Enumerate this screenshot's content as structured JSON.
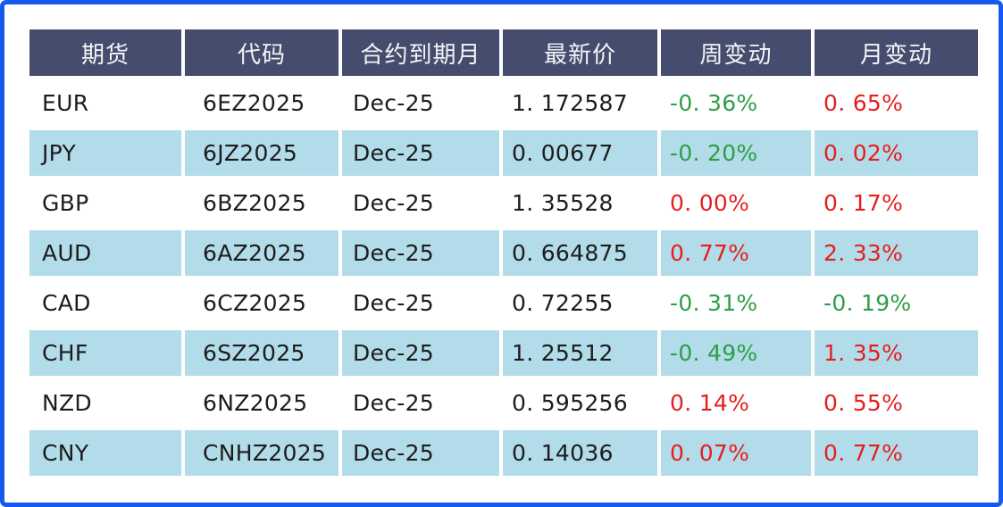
{
  "colors": {
    "frame_border": "#145af0",
    "header_bg": "#454c6e",
    "header_text": "#f4f5f7",
    "row_alt_bg": "#b2dce9",
    "body_text": "#1c1c1c",
    "negative_green": "#2d9e46",
    "positive_red": "#e61e1e"
  },
  "table": {
    "columns": [
      {
        "key": "future",
        "label": "期货"
      },
      {
        "key": "code",
        "label": "代码"
      },
      {
        "key": "expiry",
        "label": "合约到期月"
      },
      {
        "key": "last",
        "label": "最新价"
      },
      {
        "key": "week",
        "label": "周变动"
      },
      {
        "key": "month",
        "label": "月变动"
      }
    ],
    "rows": [
      {
        "future": "EUR",
        "code": "6EZ2025",
        "expiry": "Dec-25",
        "last": "1. 172587",
        "week": {
          "text": "-0. 36%",
          "color": "green"
        },
        "month": {
          "text": "0. 65%",
          "color": "red"
        }
      },
      {
        "future": "JPY",
        "code": "6JZ2025",
        "expiry": "Dec-25",
        "last": "0. 00677",
        "week": {
          "text": "-0. 20%",
          "color": "green"
        },
        "month": {
          "text": "0. 02%",
          "color": "red"
        }
      },
      {
        "future": "GBP",
        "code": "6BZ2025",
        "expiry": "Dec-25",
        "last": "1. 35528",
        "week": {
          "text": "0. 00%",
          "color": "red"
        },
        "month": {
          "text": "0. 17%",
          "color": "red"
        }
      },
      {
        "future": "AUD",
        "code": "6AZ2025",
        "expiry": "Dec-25",
        "last": "0. 664875",
        "week": {
          "text": "0. 77%",
          "color": "red"
        },
        "month": {
          "text": "2. 33%",
          "color": "red"
        }
      },
      {
        "future": "CAD",
        "code": "6CZ2025",
        "expiry": "Dec-25",
        "last": "0. 72255",
        "week": {
          "text": "-0. 31%",
          "color": "green"
        },
        "month": {
          "text": "-0. 19%",
          "color": "green"
        }
      },
      {
        "future": "CHF",
        "code": "6SZ2025",
        "expiry": "Dec-25",
        "last": "1. 25512",
        "week": {
          "text": "-0. 49%",
          "color": "green"
        },
        "month": {
          "text": "1. 35%",
          "color": "red"
        }
      },
      {
        "future": "NZD",
        "code": "6NZ2025",
        "expiry": "Dec-25",
        "last": "0. 595256",
        "week": {
          "text": "0. 14%",
          "color": "red"
        },
        "month": {
          "text": "0. 55%",
          "color": "red"
        }
      },
      {
        "future": "CNY",
        "code": "CNHZ2025",
        "expiry": "Dec-25",
        "last": "0. 14036",
        "week": {
          "text": "0. 07%",
          "color": "red"
        },
        "month": {
          "text": "0. 77%",
          "color": "red"
        }
      }
    ]
  },
  "chart_data": {
    "type": "table",
    "title": "",
    "columns": [
      "期货",
      "代码",
      "合约到期月",
      "最新价",
      "周变动",
      "月变动"
    ],
    "rows": [
      [
        "EUR",
        "6EZ2025",
        "Dec-25",
        "1.172587",
        "-0.36%",
        "0.65%"
      ],
      [
        "JPY",
        "6JZ2025",
        "Dec-25",
        "0.00677",
        "-0.20%",
        "0.02%"
      ],
      [
        "GBP",
        "6BZ2025",
        "Dec-25",
        "1.35528",
        "0.00%",
        "0.17%"
      ],
      [
        "AUD",
        "6AZ2025",
        "Dec-25",
        "0.664875",
        "0.77%",
        "2.33%"
      ],
      [
        "CAD",
        "6CZ2025",
        "Dec-25",
        "0.72255",
        "-0.31%",
        "-0.19%"
      ],
      [
        "CHF",
        "6SZ2025",
        "Dec-25",
        "1.25512",
        "-0.49%",
        "1.35%"
      ],
      [
        "NZD",
        "6NZ2025",
        "Dec-25",
        "0.595256",
        "0.14%",
        "0.55%"
      ],
      [
        "CNY",
        "CNHZ2025",
        "Dec-25",
        "0.14036",
        "0.07%",
        "0.77%"
      ]
    ],
    "legend_note": "green = weekly/monthly decline, red = rise or flat"
  }
}
